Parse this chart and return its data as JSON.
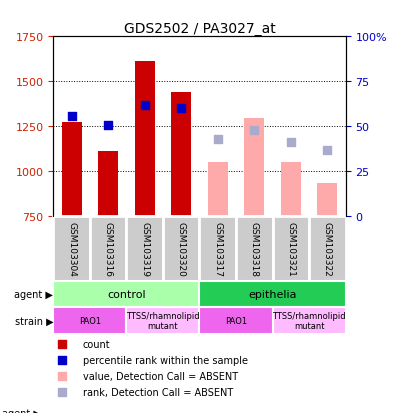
{
  "title": "GDS2502 / PA3027_at",
  "samples": [
    "GSM103304",
    "GSM103316",
    "GSM103319",
    "GSM103320",
    "GSM103317",
    "GSM103318",
    "GSM103321",
    "GSM103322"
  ],
  "bar_values": [
    1270,
    1110,
    1610,
    1440,
    null,
    null,
    null,
    null
  ],
  "bar_values_absent": [
    null,
    null,
    null,
    null,
    1050,
    1295,
    1050,
    930
  ],
  "rank_values": [
    1305,
    1255,
    1365,
    1350,
    null,
    null,
    null,
    null
  ],
  "rank_values_absent": [
    null,
    null,
    null,
    null,
    1175,
    1230,
    1160,
    1115
  ],
  "bar_color": "#cc0000",
  "bar_color_absent": "#ffaaaa",
  "rank_color": "#0000cc",
  "rank_color_absent": "#aaaacc",
  "ylim_left": [
    750,
    1750
  ],
  "ylim_right": [
    0,
    100
  ],
  "yticks_left": [
    750,
    1000,
    1250,
    1500,
    1750
  ],
  "yticks_right": [
    0,
    25,
    50,
    75,
    100
  ],
  "yticklabels_right": [
    "0",
    "25",
    "50",
    "75",
    "100%"
  ],
  "agent_groups": [
    {
      "label": "control",
      "span": [
        0,
        4
      ],
      "color": "#aaffaa"
    },
    {
      "label": "epithelia",
      "span": [
        4,
        8
      ],
      "color": "#22cc55"
    }
  ],
  "strain_groups": [
    {
      "label": "PAO1",
      "span": [
        0,
        2
      ],
      "color": "#ee66ee"
    },
    {
      "label": "TTSS/rhamnolipid\nmutant",
      "span": [
        2,
        4
      ],
      "color": "#ffbbff"
    },
    {
      "label": "PAO1",
      "span": [
        4,
        6
      ],
      "color": "#ee66ee"
    },
    {
      "label": "TTSS/rhamnolipid\nmutant",
      "span": [
        6,
        8
      ],
      "color": "#ffbbff"
    }
  ],
  "legend_items": [
    {
      "label": "count",
      "color": "#cc0000"
    },
    {
      "label": "percentile rank within the sample",
      "color": "#0000cc"
    },
    {
      "label": "value, Detection Call = ABSENT",
      "color": "#ffaaaa"
    },
    {
      "label": "rank, Detection Call = ABSENT",
      "color": "#aaaacc"
    }
  ],
  "bar_width": 0.55,
  "base_value": 750,
  "left_axis_color": "#cc2200",
  "right_axis_color": "#0000cc",
  "grid_color": "black",
  "sample_box_color": "#cccccc",
  "sample_box_edge": "white"
}
